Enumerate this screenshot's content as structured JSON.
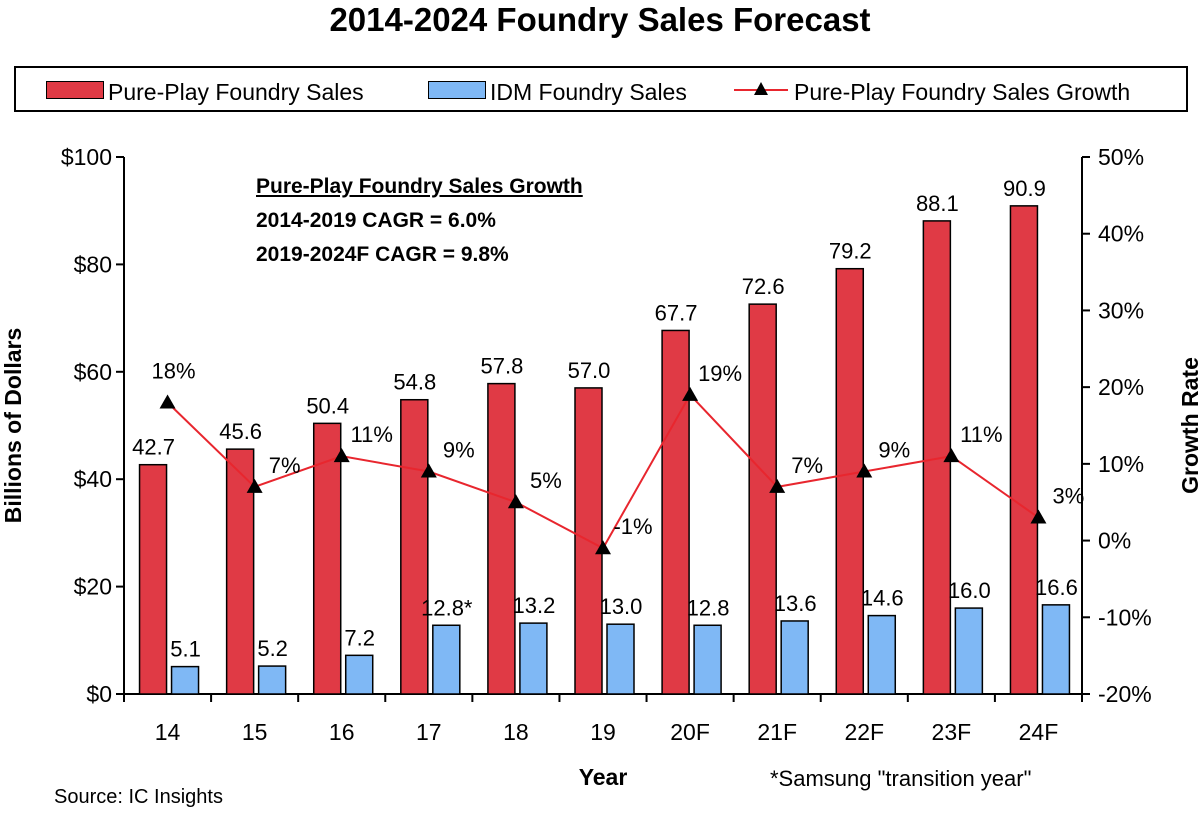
{
  "chart_data": {
    "type": "bar",
    "title": "2014-2024 Foundry Sales Forecast",
    "xlabel": "Year",
    "ylabel": "Billions of Dollars",
    "y2label": "Growth Rate",
    "categories": [
      "14",
      "15",
      "16",
      "17",
      "18",
      "19",
      "20F",
      "21F",
      "22F",
      "23F",
      "24F"
    ],
    "ylim": [
      0,
      100
    ],
    "y2lim": [
      -20,
      50
    ],
    "yticks": [
      "$0",
      "$20",
      "$40",
      "$60",
      "$80",
      "$100"
    ],
    "y2ticks": [
      "-20%",
      "-10%",
      "0%",
      "10%",
      "20%",
      "30%",
      "40%",
      "50%"
    ],
    "series": [
      {
        "name": "Pure-Play Foundry Sales",
        "type": "bar",
        "color": "#e03a45",
        "values": [
          42.7,
          45.6,
          50.4,
          54.8,
          57.8,
          57.0,
          67.7,
          72.6,
          79.2,
          88.1,
          90.9
        ],
        "labels": [
          "42.7",
          "45.6",
          "50.4",
          "54.8",
          "57.8",
          "57.0",
          "67.7",
          "72.6",
          "79.2",
          "88.1",
          "90.9"
        ]
      },
      {
        "name": "IDM Foundry Sales",
        "type": "bar",
        "color": "#7fb8f5",
        "values": [
          5.1,
          5.2,
          7.2,
          12.8,
          13.2,
          13.0,
          12.8,
          13.6,
          14.6,
          16.0,
          16.6
        ],
        "labels": [
          "5.1",
          "5.2",
          "7.2",
          "12.8*",
          "13.2",
          "13.0",
          "12.8",
          "13.6",
          "14.6",
          "16.0",
          "16.6"
        ]
      },
      {
        "name": "Pure-Play Foundry Sales Growth",
        "type": "line",
        "axis": "right",
        "color": "#e8262e",
        "marker": "triangle",
        "values": [
          18,
          7,
          11,
          9,
          5,
          -1,
          19,
          7,
          9,
          11,
          3
        ],
        "labels": [
          "18%",
          "7%",
          "11%",
          "9%",
          "5%",
          "-1%",
          "19%",
          "7%",
          "9%",
          "11%",
          "3%"
        ]
      }
    ],
    "annotation": {
      "heading": "Pure-Play Foundry Sales Growth",
      "line1": "2014-2019 CAGR = 6.0%",
      "line2": "2019-2024F CAGR = 9.8%"
    },
    "source": "Source: IC Insights",
    "footnote": "*Samsung \"transition year\"",
    "legend_position": "top",
    "grid": false
  }
}
